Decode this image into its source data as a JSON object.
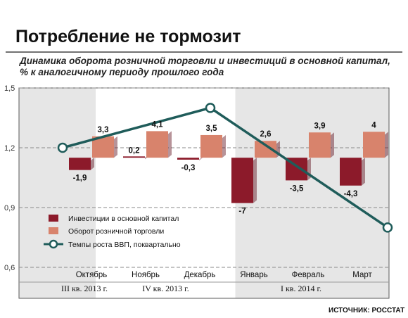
{
  "title": "Потребление не тормозит",
  "subtitle_line1": "Динамика оборота розничной торговли и инвестиций в основной капитал,",
  "subtitle_line2": "% к аналогичному периоду прошлого года",
  "source": "ИСТОЧНИК: РОССТАТ",
  "colors": {
    "investments": "#8c1a2a",
    "retail": "#d8836c",
    "gdp": "#1f5c5a",
    "shade": "#e6e6e6",
    "frame": "#5a5a5a"
  },
  "chart_data": {
    "type": "bar",
    "categories": [
      "Октябрь",
      "Ноябрь",
      "Декабрь",
      "Январь",
      "Февраль",
      "Март"
    ],
    "quarters": [
      {
        "label": "III кв. 2013 г.",
        "months": [
          0
        ]
      },
      {
        "label": "IV кв. 2013 г.",
        "months": [
          1,
          2
        ]
      },
      {
        "label": "I кв. 2014 г.",
        "months": [
          3,
          4,
          5
        ]
      }
    ],
    "series": [
      {
        "name": "Инвестиции в основной капитал",
        "type": "bar",
        "values": [
          -1.9,
          0.2,
          -0.3,
          -7,
          -3.5,
          -4.3
        ],
        "labels": [
          "-1,9",
          "0,2",
          "-0,3",
          "-7",
          "-3,5",
          "-4,3"
        ]
      },
      {
        "name": "Оборот розничной торговли",
        "type": "bar",
        "values": [
          3.3,
          4.1,
          3.5,
          2.6,
          3.9,
          4
        ],
        "labels": [
          "3,3",
          "4,1",
          "3,5",
          "2,6",
          "3,9",
          "4"
        ]
      },
      {
        "name": "Темпы роста ВВП, поквартально",
        "type": "line",
        "points": [
          [
            0,
            1.2
          ],
          [
            2.5,
            1.4
          ],
          [
            5.5,
            0.8
          ]
        ]
      }
    ],
    "y_axis": {
      "ticks": [
        1.5,
        1.2,
        0.9,
        0.6
      ],
      "tick_labels": [
        "1,5",
        "1,2",
        "0,9",
        "0,6"
      ],
      "ylim": [
        0.6,
        1.5
      ]
    },
    "bar_scale": {
      "zero_at_y": 1.15,
      "y_per_pct": 0.0325
    },
    "legend_position": "lower-left"
  }
}
